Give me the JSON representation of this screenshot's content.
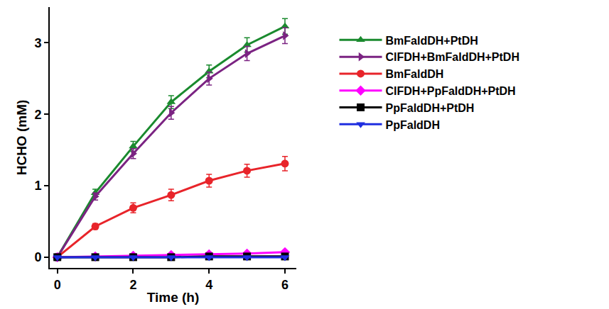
{
  "chart_data": {
    "type": "line",
    "x_label": "Time (h)",
    "y_label": "HCHO (mM)",
    "x": [
      0,
      1,
      2,
      3,
      4,
      5,
      6
    ],
    "xlim": [
      -0.2,
      6.3
    ],
    "xticks": [
      0,
      2,
      4,
      6
    ],
    "ylim": [
      -0.15,
      3.5
    ],
    "yticks": [
      0,
      1,
      2,
      3
    ],
    "grid": false,
    "legend": "right",
    "series": [
      {
        "name": "BmFaldDH+PtDH",
        "color": "#1a8a2e",
        "marker": "triangle-up",
        "values": [
          0,
          0.9,
          1.55,
          2.17,
          2.6,
          2.97,
          3.23
        ],
        "errors": [
          0,
          0.05,
          0.07,
          0.09,
          0.09,
          0.1,
          0.11
        ]
      },
      {
        "name": "ClFDH+BmFaldDH+PtDH",
        "color": "#7b2382",
        "marker": "triangle-right",
        "values": [
          0,
          0.85,
          1.45,
          2.02,
          2.5,
          2.85,
          3.1
        ],
        "errors": [
          0,
          0.05,
          0.07,
          0.09,
          0.09,
          0.1,
          0.11
        ]
      },
      {
        "name": "BmFaldDH",
        "color": "#e8242a",
        "marker": "circle",
        "values": [
          0,
          0.43,
          0.69,
          0.87,
          1.07,
          1.21,
          1.31
        ],
        "errors": [
          0,
          0.04,
          0.07,
          0.08,
          0.09,
          0.09,
          0.1
        ]
      },
      {
        "name": "ClFDH+PpFaldDH+PtDH",
        "color": "#ff00ff",
        "marker": "diamond",
        "values": [
          0,
          0.01,
          0.02,
          0.03,
          0.04,
          0.05,
          0.07
        ],
        "errors": [
          0,
          0.01,
          0.01,
          0.01,
          0.01,
          0.01,
          0.01
        ]
      },
      {
        "name": "PpFaldDH+PtDH",
        "color": "#000000",
        "marker": "square",
        "values": [
          0,
          0,
          0,
          0,
          0.01,
          0.01,
          0.01
        ],
        "errors": [
          0,
          0,
          0,
          0,
          0,
          0,
          0
        ]
      },
      {
        "name": "PpFaldDH",
        "color": "#1f2ee0",
        "marker": "triangle-down",
        "values": [
          0,
          0,
          0,
          0,
          0,
          0,
          0
        ],
        "errors": [
          0,
          0,
          0,
          0,
          0,
          0,
          0
        ]
      }
    ]
  }
}
